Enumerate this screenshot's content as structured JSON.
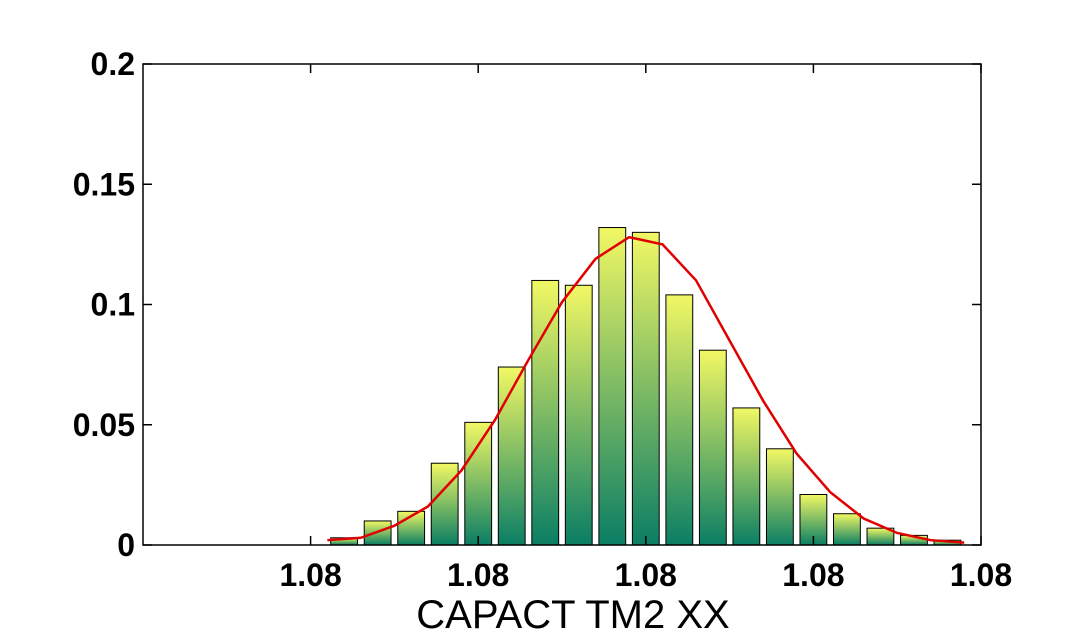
{
  "chart_data": {
    "type": "bar",
    "title": "",
    "xlabel": "CAPACT TM2 XX",
    "ylabel": "",
    "ylim": [
      0,
      0.2
    ],
    "yticks": [
      0,
      0.05,
      0.1,
      0.15,
      0.2
    ],
    "ytick_labels": [
      "0",
      "0.05",
      "0.1",
      "0.15",
      "0.2"
    ],
    "xlim": [
      0,
      25
    ],
    "xtick_positions": [
      5,
      10,
      15,
      20,
      25
    ],
    "xtick_labels": [
      "1.08",
      "1.08",
      "1.08",
      "1.08",
      "1.08"
    ],
    "grid": false,
    "bar_color_bottom": "#0a7e64",
    "bar_color_top": "#f2f864",
    "fit_color": "#e00000",
    "bars": {
      "x": [
        6,
        7,
        8,
        9,
        10,
        11,
        12,
        13,
        14,
        15,
        16,
        17,
        18,
        19,
        20,
        21,
        22,
        23,
        24
      ],
      "values": [
        0.003,
        0.01,
        0.014,
        0.034,
        0.051,
        0.074,
        0.11,
        0.108,
        0.132,
        0.13,
        0.104,
        0.081,
        0.057,
        0.04,
        0.021,
        0.013,
        0.007,
        0.004,
        0.002
      ]
    },
    "fit_line": {
      "x": [
        5.5,
        6.5,
        7.5,
        8.5,
        9.5,
        10.5,
        11.5,
        12.5,
        13.5,
        14.5,
        15.5,
        16.5,
        17.5,
        18.5,
        19.5,
        20.5,
        21.5,
        22.5,
        23.5,
        24.5
      ],
      "y": [
        0.002,
        0.003,
        0.008,
        0.016,
        0.031,
        0.052,
        0.077,
        0.101,
        0.119,
        0.128,
        0.125,
        0.11,
        0.085,
        0.06,
        0.038,
        0.022,
        0.011,
        0.005,
        0.002,
        0.001
      ]
    }
  }
}
